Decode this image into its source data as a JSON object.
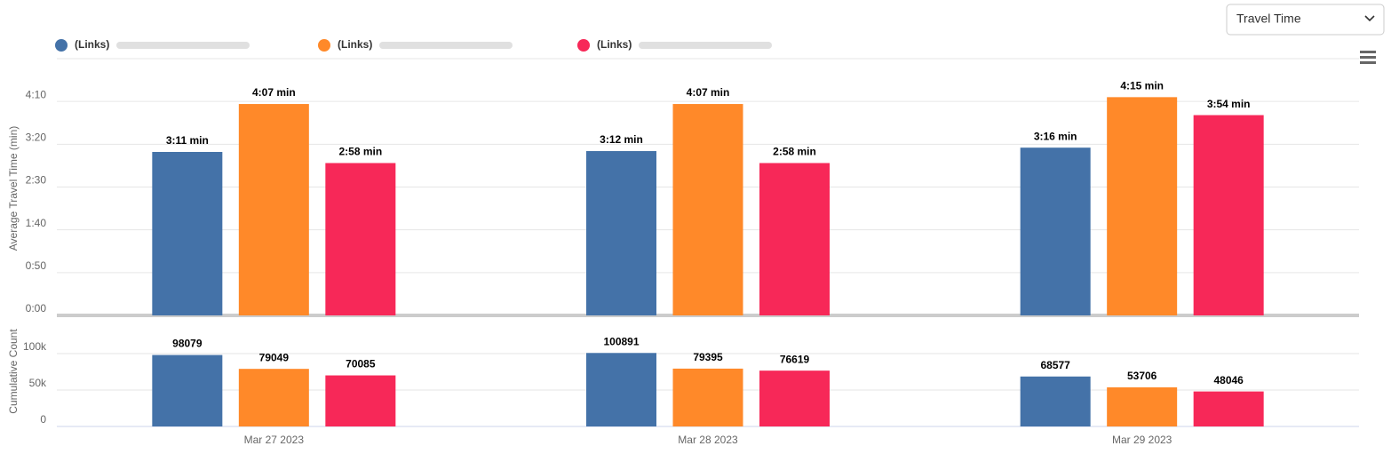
{
  "controls": {
    "dropdown": "Travel Time"
  },
  "chart_data": [
    {
      "type": "bar",
      "ylabel": "Average Travel Time (min)",
      "series": [
        {
          "name": "(Links)",
          "color": "#4472a8",
          "values": [
            191,
            192,
            196
          ],
          "value_labels": [
            "3:11 min",
            "3:12 min",
            "3:16 min"
          ]
        },
        {
          "name": "(Links)",
          "color": "#ff8929",
          "values": [
            247,
            247,
            255
          ],
          "value_labels": [
            "4:07 min",
            "4:07 min",
            "4:15 min"
          ]
        },
        {
          "name": "(Links)",
          "color": "#f72858",
          "values": [
            178,
            178,
            234
          ],
          "value_labels": [
            "2:58 min",
            "2:58 min",
            "3:54 min"
          ]
        }
      ],
      "ylim": [
        0,
        300
      ],
      "yticks": [
        {
          "value": 0,
          "label": "0:00"
        },
        {
          "value": 50,
          "label": "0:50"
        },
        {
          "value": 100,
          "label": "1:40"
        },
        {
          "value": 150,
          "label": "2:30"
        },
        {
          "value": 200,
          "label": "3:20"
        },
        {
          "value": 250,
          "label": "4:10"
        }
      ],
      "grid": true
    },
    {
      "type": "bar",
      "ylabel": "Cumulative Count",
      "categories": [
        "Mar 27 2023",
        "Mar 28 2023",
        "Mar 29 2023"
      ],
      "series": [
        {
          "color": "#4472a8",
          "values": [
            98079,
            100891,
            68577
          ]
        },
        {
          "color": "#ff8929",
          "values": [
            79049,
            79395,
            53706
          ]
        },
        {
          "color": "#f72858",
          "values": [
            70085,
            76619,
            48046
          ]
        }
      ],
      "ylim": [
        0,
        130000
      ],
      "yticks": [
        0,
        {
          "value": 50000,
          "label": "50k"
        },
        {
          "value": 100000,
          "label": "100k"
        }
      ],
      "grid": true
    }
  ]
}
